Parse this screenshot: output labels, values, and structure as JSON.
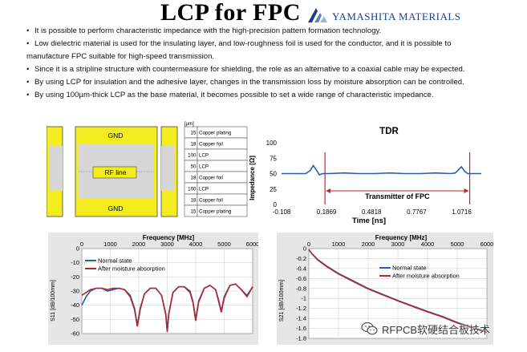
{
  "header": {
    "title": "LCP for FPC",
    "logo_text": "YAMASHITA MATERIALS",
    "logo_icon": "yamashita-logo-icon"
  },
  "bullets": [
    "It is possible to perform characteristic impedance with the high-precision pattern formation technology.",
    "Low dielectric material is used for the insulating layer, and low-roughness foil is used for the conductor, and it is possible to",
    "manufacture FPC suitable for high-speed transmission.",
    "Since it is a stripline structure with countermeasure for shielding, the role as an alternative to a coaxial cable may be expected.",
    "By using LCP for  insulation and the adhesive layer, changes in the transmission loss by moisture absorption can be controlled.",
    "By using 100µm-thick LCP as the base material, it becomes possible to set a wide range of characteristic impedance."
  ],
  "cross_section": {
    "unit_label": "[µm]",
    "gnd_top": "GND",
    "gnd_bottom": "GND",
    "rf_line": "RF line",
    "colors": {
      "copper": "#f3ec1f",
      "lcp": "#d6d6d6",
      "outline": "#444444"
    },
    "layers": [
      {
        "thickness": "15",
        "name": "Copper plating"
      },
      {
        "thickness": "18",
        "name": "Copper foil"
      },
      {
        "thickness": "100",
        "name": "LCP"
      },
      {
        "thickness": "50",
        "name": "LCP"
      },
      {
        "thickness": "18",
        "name": "Copper foil"
      },
      {
        "thickness": "100",
        "name": "LCP"
      },
      {
        "thickness": "18",
        "name": "Copper foil"
      },
      {
        "thickness": "15",
        "name": "Copper plating"
      }
    ]
  },
  "chart_data": [
    {
      "type": "line",
      "title": "TDR",
      "xlabel": "Time [ns]",
      "ylabel": "Impedance [Ω]",
      "x_ticks": [
        "-0.108",
        "0.1869",
        "0.4818",
        "0.7767",
        "1.0716"
      ],
      "y_ticks": [
        0,
        25,
        50,
        75,
        100
      ],
      "xlim": [
        -0.108,
        1.2
      ],
      "ylim": [
        0,
        100
      ],
      "annotation": "Transmitter of FPC",
      "colors": {
        "line": "#2a5fa8",
        "marker": "#c0262b"
      },
      "series": [
        {
          "x": [
            -0.108,
            -0.05,
            0.0,
            0.05,
            0.08,
            0.1,
            0.12,
            0.14,
            0.16,
            0.2,
            0.3,
            0.4,
            0.5,
            0.6,
            0.7,
            0.8,
            0.9,
            1.0,
            1.03,
            1.05,
            1.07,
            1.09,
            1.11,
            1.15,
            1.2
          ],
          "y": [
            50,
            50,
            50,
            50,
            55,
            63,
            56,
            48,
            50,
            50,
            51,
            50,
            50,
            51,
            50,
            50,
            51,
            50,
            51,
            56,
            61,
            54,
            50,
            50,
            50
          ]
        }
      ]
    },
    {
      "type": "line",
      "title": "Frequency [MHz]",
      "xlabel": "Frequency [MHz]",
      "ylabel": "S11 [dB/100mm]",
      "x_ticks": [
        0,
        1000,
        2000,
        3000,
        4000,
        5000,
        6000
      ],
      "y_ticks": [
        0,
        -10,
        -20,
        -30,
        -40,
        -50,
        -60
      ],
      "xlim": [
        0,
        6000
      ],
      "ylim": [
        -60,
        0
      ],
      "legend_position": "top-left",
      "series": [
        {
          "name": "Normal state",
          "color": "#2a5fa8",
          "x": [
            0,
            150,
            300,
            500,
            700,
            900,
            1100,
            1300,
            1500,
            1700,
            1850,
            1950,
            2050,
            2200,
            2400,
            2600,
            2800,
            2950,
            3000,
            3050,
            3200,
            3400,
            3600,
            3800,
            3900,
            4000,
            4100,
            4300,
            4500,
            4700,
            4800,
            4900,
            5000,
            5200,
            5400,
            5600,
            5800,
            6000
          ],
          "y": [
            -40,
            -34,
            -30,
            -28,
            -28,
            -30,
            -29,
            -28,
            -29,
            -33,
            -42,
            -54,
            -42,
            -32,
            -28,
            -28,
            -33,
            -46,
            -58,
            -46,
            -31,
            -27,
            -27,
            -30,
            -37,
            -50,
            -37,
            -28,
            -26,
            -29,
            -36,
            -44,
            -34,
            -26,
            -25,
            -29,
            -33,
            -27
          ]
        },
        {
          "name": "After moisture absorption",
          "color": "#b0282e",
          "x": [
            0,
            150,
            300,
            500,
            700,
            900,
            1100,
            1300,
            1500,
            1700,
            1850,
            1950,
            2050,
            2200,
            2400,
            2600,
            2800,
            2950,
            3000,
            3050,
            3200,
            3400,
            3600,
            3800,
            3900,
            4000,
            4100,
            4300,
            4500,
            4700,
            4800,
            4900,
            5000,
            5200,
            5400,
            5600,
            5800,
            6000
          ],
          "y": [
            -33,
            -31,
            -29,
            -28,
            -28,
            -29,
            -28,
            -28,
            -29,
            -34,
            -43,
            -55,
            -43,
            -32,
            -28,
            -28,
            -33,
            -47,
            -59,
            -47,
            -31,
            -27,
            -27,
            -31,
            -38,
            -51,
            -38,
            -28,
            -26,
            -29,
            -37,
            -45,
            -35,
            -26,
            -25,
            -29,
            -34,
            -27
          ]
        }
      ]
    },
    {
      "type": "line",
      "title": "Frequency [MHz]",
      "xlabel": "Frequency [MHz]",
      "ylabel": "S21 [dB/100mm]",
      "x_ticks": [
        0,
        1000,
        2000,
        3000,
        4000,
        5000,
        6000
      ],
      "y_ticks": [
        0,
        -0.2,
        -0.4,
        -0.6,
        -0.8,
        -1,
        -1.2,
        -1.4,
        -1.6,
        -1.8
      ],
      "xlim": [
        0,
        6000
      ],
      "ylim": [
        -1.8,
        0
      ],
      "legend_position": "top-right",
      "series": [
        {
          "name": "Normal state",
          "color": "#2a5fa8",
          "x": [
            0,
            100,
            300,
            600,
            1000,
            1500,
            2000,
            2500,
            3000,
            3500,
            4000,
            4500,
            5000,
            5500,
            6000
          ],
          "y": [
            -0.02,
            -0.1,
            -0.22,
            -0.35,
            -0.5,
            -0.65,
            -0.8,
            -0.92,
            -1.04,
            -1.15,
            -1.26,
            -1.36,
            -1.48,
            -1.58,
            -1.67
          ]
        },
        {
          "name": "After moisture absorption",
          "color": "#b0282e",
          "x": [
            0,
            100,
            300,
            600,
            1000,
            1500,
            2000,
            2500,
            3000,
            3500,
            4000,
            4500,
            5000,
            5500,
            6000
          ],
          "y": [
            -0.02,
            -0.1,
            -0.23,
            -0.36,
            -0.51,
            -0.66,
            -0.81,
            -0.93,
            -1.05,
            -1.16,
            -1.27,
            -1.37,
            -1.49,
            -1.59,
            -1.68
          ]
        }
      ]
    }
  ],
  "watermark": {
    "text": "RFPCB软硬结合板技术",
    "icon": "wechat-icon"
  }
}
